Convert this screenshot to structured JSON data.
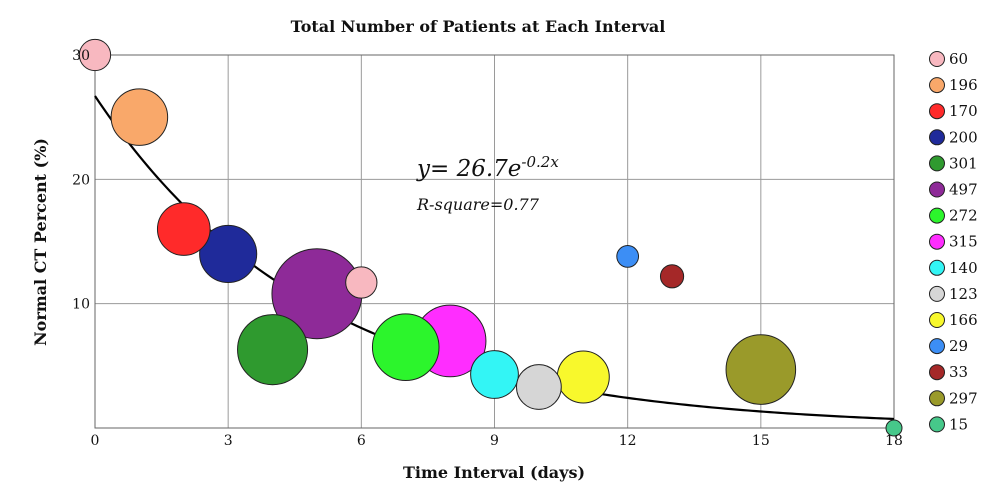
{
  "chart_data": {
    "type": "scatter",
    "title": "Total Number of Patients at Each Interval",
    "xlabel": "Time Interval (days)",
    "ylabel": "Normal CT Percent (%)",
    "xlim": [
      0,
      18
    ],
    "ylim": [
      0,
      30
    ],
    "xticks": [
      0,
      3,
      6,
      9,
      12,
      15,
      18
    ],
    "yticks": [
      10,
      20,
      30
    ],
    "grid": true,
    "legend_placement": "right",
    "equation": {
      "prefix": "y= 26.7e",
      "exponent": "-0.2x"
    },
    "r_square": "R-square=0.77",
    "trend": {
      "a": 26.7,
      "b": -0.2,
      "color": "#000000"
    },
    "series": [
      {
        "name": "60",
        "x": 0,
        "y": 30,
        "patients": 60,
        "color": "#f8b8c0"
      },
      {
        "name": "196",
        "x": 1,
        "y": 25,
        "patients": 196,
        "color": "#f9a86a"
      },
      {
        "name": "170",
        "x": 2,
        "y": 16,
        "patients": 170,
        "color": "#ff2a2a"
      },
      {
        "name": "200",
        "x": 3,
        "y": 14,
        "patients": 200,
        "color": "#1f2a9a"
      },
      {
        "name": "301",
        "x": 4,
        "y": 6.3,
        "patients": 301,
        "color": "#2f9a2f"
      },
      {
        "name": "497",
        "x": 5,
        "y": 10.8,
        "patients": 497,
        "color": "#8e2a98"
      },
      {
        "name": "272",
        "x": 7,
        "y": 6.5,
        "patients": 272,
        "color": "#2cf52c"
      },
      {
        "name": "315",
        "x": 8,
        "y": 7,
        "patients": 315,
        "color": "#ff2dff"
      },
      {
        "name": "140",
        "x": 9,
        "y": 4.3,
        "patients": 140,
        "color": "#33f5f5"
      },
      {
        "name": "123",
        "x": 10,
        "y": 3.3,
        "patients": 123,
        "color": "#d6d6d6"
      },
      {
        "name": "166",
        "x": 11,
        "y": 4.1,
        "patients": 166,
        "color": "#f8f82c"
      },
      {
        "name": "29",
        "x": 12,
        "y": 13.8,
        "patients": 29,
        "color": "#3c8ef5"
      },
      {
        "name": "33",
        "x": 13,
        "y": 12.2,
        "patients": 33,
        "color": "#a52828"
      },
      {
        "name": "297",
        "x": 15,
        "y": 4.7,
        "patients": 297,
        "color": "#9a9a2a"
      },
      {
        "name": "15",
        "x": 18,
        "y": 0,
        "patients": 15,
        "color": "#46c88a"
      }
    ],
    "extra_point": {
      "x": 6,
      "y": 11.7,
      "patients": 60,
      "color": "#f8b8c0"
    }
  }
}
